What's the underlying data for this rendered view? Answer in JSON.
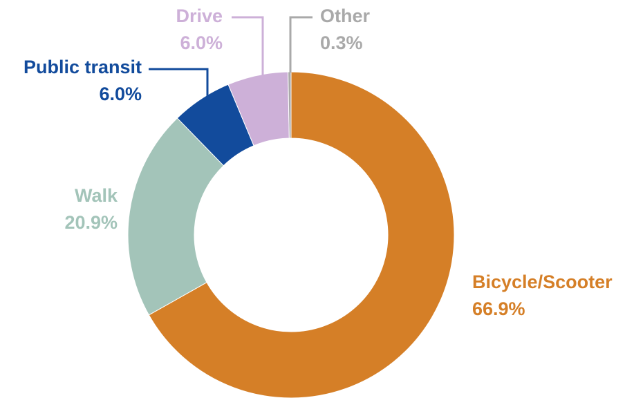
{
  "chart_data": {
    "type": "donut",
    "labels": [
      "Bicycle/Scooter",
      "Walk",
      "Public transit",
      "Drive",
      "Other"
    ],
    "values": [
      66.9,
      20.9,
      6.0,
      6.0,
      0.3
    ],
    "value_labels": [
      "66.9%",
      "20.9%",
      "6.0%",
      "6.0%",
      "0.3%"
    ],
    "colors": [
      "#d57f27",
      "#a3c4b9",
      "#124b9c",
      "#cdb0d8",
      "#a9a9a9"
    ]
  }
}
